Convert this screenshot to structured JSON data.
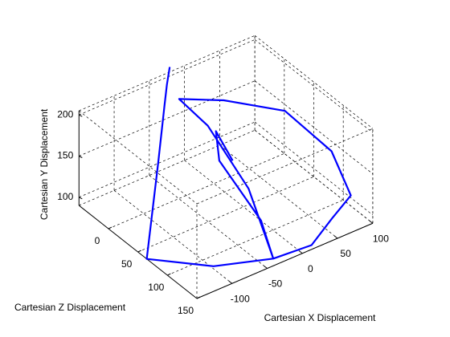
{
  "chart_data": {
    "type": "line3d",
    "xlabel": "Cartesian X Displacement",
    "ylabel": "Cartesian Y Displacement",
    "zlabel": "Cartesian Z Displacement",
    "color": "#0000ff",
    "grid": true,
    "xlim": [
      -150,
      100
    ],
    "xticks": [
      -100,
      -50,
      0,
      50,
      100
    ],
    "ylim": [
      90,
      205
    ],
    "yticks": [
      100,
      150,
      200
    ],
    "zlim": [
      -50,
      150
    ],
    "zticks": [
      0,
      50,
      100,
      150
    ],
    "x": [
      -21,
      -25,
      -45,
      -96,
      -150,
      -97,
      -33,
      18,
      68,
      94,
      75,
      59,
      14,
      -16,
      8,
      -1,
      -33,
      -17,
      -26,
      -14,
      -7
    ],
    "y": [
      211,
      191,
      186,
      162,
      90,
      90,
      90,
      90,
      90,
      109,
      164,
      185,
      186,
      176,
      146,
      118,
      90,
      108,
      150,
      170,
      143
    ],
    "z": [
      -50,
      -50,
      -30,
      20,
      65,
      115,
      140,
      144,
      119,
      120,
      110,
      50,
      0,
      -40,
      -20,
      60,
      140,
      100,
      40,
      20,
      40
    ]
  }
}
